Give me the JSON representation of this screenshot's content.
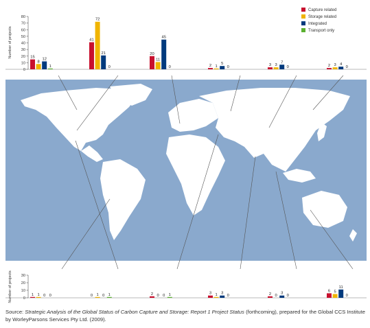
{
  "source": {
    "prefix": "Source: ",
    "title": "Strategic Analysis of the Global Status of Carbon Capture and Storage: Report 1 Project Status",
    "suffix": " (forthcoming), prepared for the Global CCS Institute by WorleyParsons Services Pty Ltd. (2009)."
  },
  "chart_data": {
    "type": "bar",
    "ylabel": "Number of projects",
    "legend": {
      "placement": "top-right",
      "entries": [
        "Capture related",
        "Storage related",
        "Integrated",
        "Transport only"
      ]
    },
    "colors": {
      "capture": "#c8102e",
      "storage": "#f0b400",
      "integrated": "#003a7d",
      "transport": "#5bb030"
    },
    "top_panel": {
      "ylim": [
        0,
        80
      ],
      "yticks": [
        0,
        10,
        20,
        30,
        40,
        50,
        60,
        70,
        80
      ],
      "groups": [
        {
          "values": [
            15,
            8,
            12,
            1
          ]
        },
        {
          "values": [
            41,
            72,
            21,
            0
          ]
        },
        {
          "values": [
            20,
            11,
            45,
            0
          ]
        },
        {
          "values": [
            2,
            1,
            5,
            0
          ]
        },
        {
          "values": [
            3,
            3,
            7,
            0
          ]
        },
        {
          "values": [
            2,
            3,
            4,
            0
          ]
        }
      ]
    },
    "bottom_panel": {
      "ylim": [
        0,
        30
      ],
      "yticks": [
        0,
        10,
        20,
        30
      ],
      "groups": [
        {
          "values": [
            1,
            1,
            0,
            0
          ]
        },
        {
          "values": [
            0,
            1,
            0,
            1
          ]
        },
        {
          "values": [
            2,
            0,
            0,
            1
          ]
        },
        {
          "values": [
            3,
            1,
            3,
            0
          ]
        },
        {
          "values": [
            2,
            0,
            3,
            0
          ]
        },
        {
          "values": [
            6,
            5,
            11,
            0
          ]
        }
      ]
    }
  }
}
